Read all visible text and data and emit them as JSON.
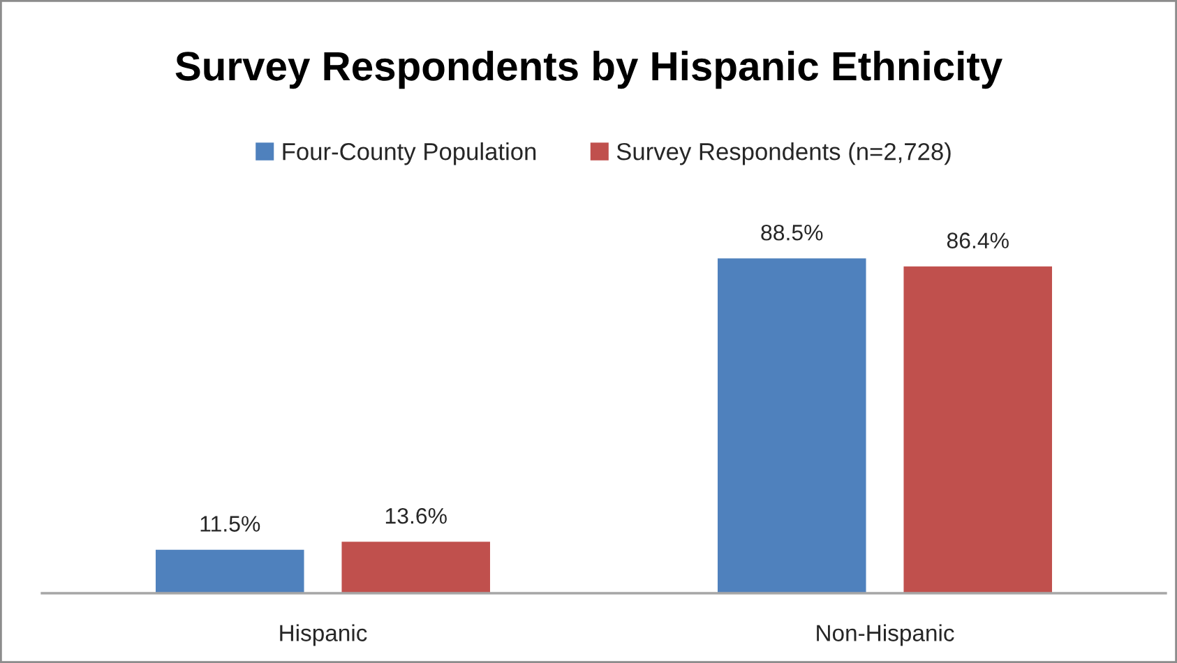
{
  "chart_data": {
    "type": "bar",
    "title": "Survey Respondents by Hispanic Ethnicity",
    "categories": [
      "Hispanic",
      "Non-Hispanic"
    ],
    "series": [
      {
        "name": "Four-County Population",
        "color": "#4f81bd",
        "values": [
          11.5,
          88.5
        ],
        "value_labels": [
          "11.5%",
          "88.5%"
        ]
      },
      {
        "name": "Survey Respondents (n=2,728)",
        "color": "#c0504d",
        "values": [
          13.6,
          86.4
        ],
        "value_labels": [
          "13.6%",
          "86.4%"
        ]
      }
    ],
    "tick_labels": "x",
    "legend": "top",
    "grid": false
  }
}
